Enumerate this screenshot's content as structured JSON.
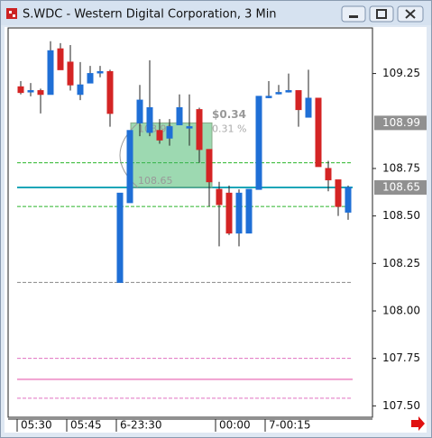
{
  "chart_data": {
    "type": "candlestick",
    "title": "S.WDC - Western Digital Corporation, 3 Min",
    "categories": [
      "05:30",
      null,
      null,
      null,
      null,
      "05:45",
      null,
      null,
      null,
      null,
      "6-23:30",
      null,
      null,
      null,
      null,
      null,
      null,
      null,
      null,
      null,
      "00:00",
      null,
      null,
      null,
      null,
      "7-00:15",
      null,
      null,
      null,
      null,
      null,
      null,
      null,
      null
    ],
    "series": [
      {
        "up_color": "#1f6fd6",
        "down_color": "#d42424",
        "open": [
          109.18,
          109.16,
          109.16,
          109.14,
          109.38,
          109.31,
          109.14,
          109.2,
          109.26,
          109.26,
          108.15,
          108.57,
          108.99,
          108.94,
          108.95,
          108.91,
          108.98,
          108.97,
          109.06,
          108.85,
          108.64,
          108.62,
          108.41,
          108.41,
          108.64,
          109.13,
          109.15,
          109.16,
          109.16,
          109.02,
          109.12,
          108.75,
          108.69,
          108.52
        ],
        "high": [
          109.21,
          109.2,
          109.17,
          109.42,
          109.41,
          109.4,
          109.31,
          109.29,
          109.29,
          109.27,
          108.62,
          108.95,
          109.19,
          109.32,
          109.01,
          109.01,
          109.14,
          109.14,
          109.07,
          108.85,
          108.68,
          108.66,
          108.64,
          108.64,
          109.13,
          109.21,
          109.19,
          109.25,
          109.16,
          109.27,
          109.12,
          108.79,
          108.69,
          108.66
        ],
        "low": [
          109.14,
          109.13,
          109.04,
          109.14,
          109.27,
          109.16,
          109.11,
          109.2,
          109.23,
          108.97,
          108.15,
          108.57,
          108.92,
          108.92,
          108.88,
          108.87,
          108.98,
          108.87,
          108.78,
          108.55,
          108.34,
          108.4,
          108.34,
          108.41,
          108.64,
          109.12,
          109.14,
          109.15,
          108.97,
          109.02,
          108.76,
          108.63,
          108.5,
          108.48
        ],
        "close": [
          109.15,
          109.16,
          109.14,
          109.37,
          109.27,
          109.19,
          109.19,
          109.25,
          109.26,
          109.04,
          108.62,
          108.95,
          109.11,
          109.07,
          108.9,
          108.97,
          109.07,
          108.97,
          108.85,
          108.68,
          108.56,
          108.41,
          108.62,
          108.64,
          109.13,
          109.13,
          109.15,
          109.16,
          109.06,
          109.12,
          108.76,
          108.69,
          108.55,
          108.65
        ]
      }
    ],
    "ylim": [
      107.44,
      109.49
    ],
    "yticks": [
      {
        "value": 107.5,
        "label": "107.50"
      },
      107.75,
      {
        "value": 108.0,
        "label": "108.00"
      },
      108.25,
      {
        "value": 108.5,
        "label": "108.50"
      },
      108.75,
      109.25
    ],
    "price_labels": [
      {
        "value": 108.99,
        "label": "108.99"
      },
      {
        "value": 108.65,
        "label": "108.65"
      }
    ],
    "lines": [
      {
        "value": 108.78,
        "color": "#2ab52a",
        "style": "dashed"
      },
      {
        "value": 108.55,
        "color": "#2ab52a",
        "style": "dashed"
      },
      {
        "value": 108.65,
        "color": "#1aa6b7",
        "style": "solid"
      },
      {
        "value": 108.15,
        "color": "#888888",
        "style": "dashed"
      },
      {
        "value": 107.75,
        "color": "#e070c0",
        "style": "dashed"
      },
      {
        "value": 107.64,
        "color": "#f0a0d0",
        "style": "solid"
      },
      {
        "value": 107.54,
        "color": "#e070c0",
        "style": "dashed"
      }
    ],
    "measure": {
      "start": 12,
      "end": 19,
      "from": 108.65,
      "to": 108.99,
      "from_label": "108.65",
      "to_label": "108.99",
      "change": "$0.34",
      "percent": "0.31 %"
    }
  }
}
